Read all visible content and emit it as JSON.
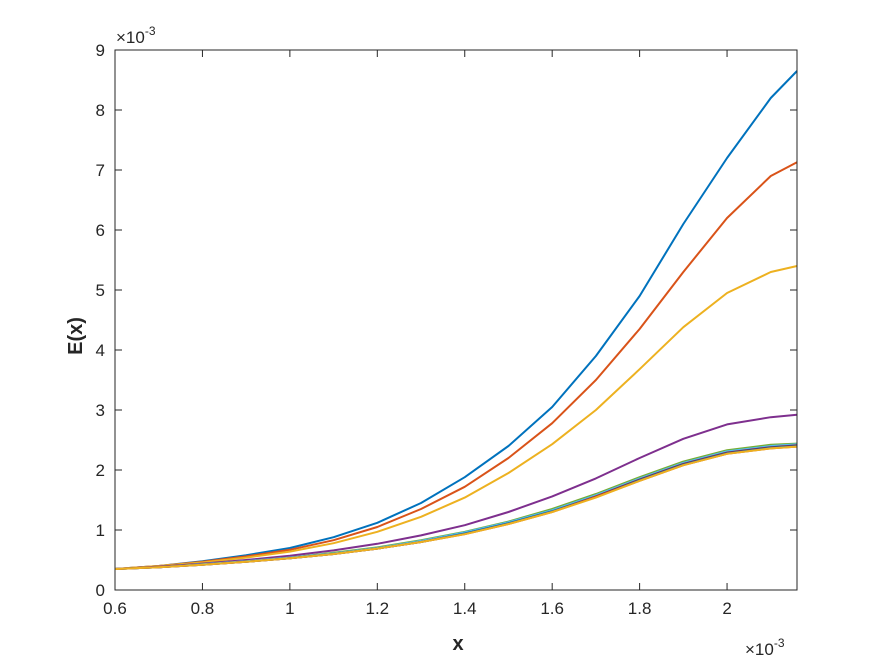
{
  "chart_data": {
    "type": "line",
    "title": "",
    "xlabel": "x",
    "ylabel": "E(x)",
    "x_exponent_label": {
      "base": "×10",
      "exp": "-3"
    },
    "y_exponent_label": {
      "base": "×10",
      "exp": "-3"
    },
    "xlim": [
      0.6,
      2.16
    ],
    "ylim": [
      0,
      9
    ],
    "xticks": [
      0.6,
      0.8,
      1.0,
      1.2,
      1.4,
      1.6,
      1.8,
      2.0
    ],
    "xtick_labels": [
      "0.6",
      "0.8",
      "1",
      "1.2",
      "1.4",
      "1.6",
      "1.8",
      "2"
    ],
    "yticks": [
      0,
      1,
      2,
      3,
      4,
      5,
      6,
      7,
      8,
      9
    ],
    "ytick_labels": [
      "0",
      "1",
      "2",
      "3",
      "4",
      "5",
      "6",
      "7",
      "8",
      "9"
    ],
    "grid": false,
    "box": true,
    "x": [
      0.6,
      0.7,
      0.8,
      0.9,
      1.0,
      1.1,
      1.2,
      1.3,
      1.4,
      1.5,
      1.6,
      1.7,
      1.8,
      1.9,
      2.0,
      2.1,
      2.16
    ],
    "series": [
      {
        "color": "#0072BD",
        "values": [
          0.35,
          0.4,
          0.48,
          0.58,
          0.7,
          0.88,
          1.12,
          1.45,
          1.88,
          2.4,
          3.05,
          3.9,
          4.9,
          6.1,
          7.2,
          8.2,
          8.65
        ]
      },
      {
        "color": "#D95319",
        "values": [
          0.35,
          0.4,
          0.47,
          0.56,
          0.67,
          0.83,
          1.05,
          1.35,
          1.72,
          2.2,
          2.78,
          3.5,
          4.35,
          5.3,
          6.2,
          6.9,
          7.13
        ]
      },
      {
        "color": "#EDB120",
        "values": [
          0.35,
          0.4,
          0.46,
          0.54,
          0.64,
          0.78,
          0.97,
          1.22,
          1.54,
          1.95,
          2.43,
          3.0,
          3.68,
          4.38,
          4.95,
          5.3,
          5.4
        ]
      },
      {
        "color": "#7E2F8E",
        "values": [
          0.35,
          0.39,
          0.44,
          0.5,
          0.57,
          0.66,
          0.77,
          0.91,
          1.08,
          1.3,
          1.56,
          1.86,
          2.2,
          2.52,
          2.76,
          2.88,
          2.92
        ]
      },
      {
        "color": "#77AC30",
        "values": [
          0.35,
          0.38,
          0.43,
          0.48,
          0.54,
          0.62,
          0.71,
          0.83,
          0.97,
          1.14,
          1.35,
          1.6,
          1.88,
          2.14,
          2.33,
          2.42,
          2.44
        ]
      },
      {
        "color": "#4DBEEE",
        "values": [
          0.35,
          0.38,
          0.43,
          0.48,
          0.54,
          0.61,
          0.7,
          0.82,
          0.96,
          1.13,
          1.33,
          1.58,
          1.86,
          2.12,
          2.31,
          2.4,
          2.43
        ]
      },
      {
        "color": "#A2142F",
        "values": [
          0.35,
          0.38,
          0.42,
          0.47,
          0.53,
          0.6,
          0.69,
          0.8,
          0.94,
          1.11,
          1.31,
          1.56,
          1.84,
          2.1,
          2.29,
          2.38,
          2.41
        ]
      },
      {
        "color": "#0072BD",
        "values": [
          0.35,
          0.38,
          0.42,
          0.47,
          0.53,
          0.6,
          0.69,
          0.8,
          0.94,
          1.11,
          1.31,
          1.55,
          1.83,
          2.09,
          2.28,
          2.37,
          2.4
        ]
      },
      {
        "color": "#D95319",
        "values": [
          0.35,
          0.38,
          0.42,
          0.47,
          0.53,
          0.6,
          0.69,
          0.8,
          0.93,
          1.1,
          1.3,
          1.55,
          1.82,
          2.08,
          2.27,
          2.36,
          2.39
        ]
      },
      {
        "color": "#EDB120",
        "values": [
          0.35,
          0.38,
          0.42,
          0.47,
          0.53,
          0.6,
          0.69,
          0.8,
          0.93,
          1.1,
          1.3,
          1.54,
          1.82,
          2.08,
          2.27,
          2.36,
          2.39
        ]
      }
    ]
  }
}
